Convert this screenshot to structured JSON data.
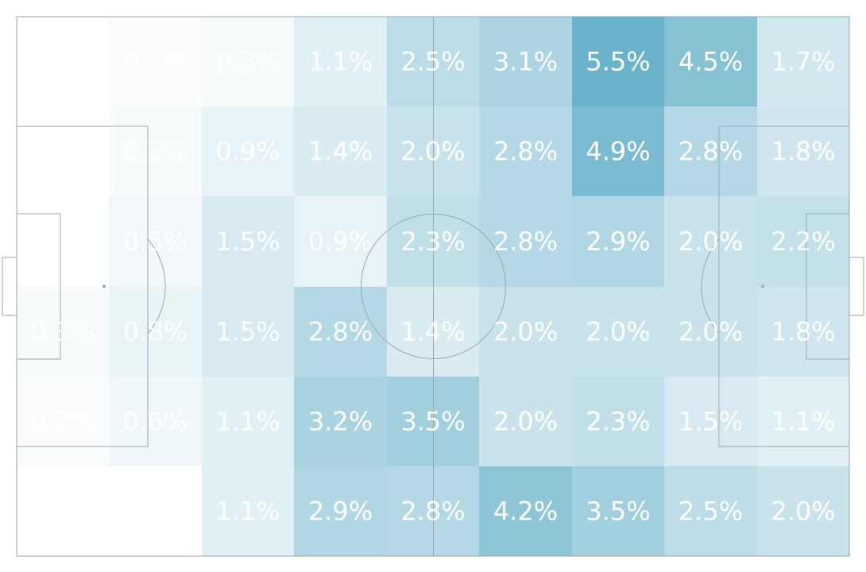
{
  "chart_data": {
    "type": "heatmap",
    "title": "",
    "xlabel": "",
    "ylabel": "",
    "grid": false,
    "legend": "none",
    "colors": {
      "low": "#ffffff",
      "high": "#6bb3cb",
      "lines": "#9aa7ad",
      "text": "#ffffff"
    },
    "rows": [
      {
        "cells": [
          {
            "value": 0.0,
            "label": ""
          },
          {
            "value": 0.2,
            "label": "0.2%"
          },
          {
            "value": 0.3,
            "label": "0.3%"
          },
          {
            "value": 1.1,
            "label": "1.1%"
          },
          {
            "value": 2.5,
            "label": "2.5%"
          },
          {
            "value": 3.1,
            "label": "3.1%"
          },
          {
            "value": 5.5,
            "label": "5.5%"
          },
          {
            "value": 4.5,
            "label": "4.5%"
          },
          {
            "value": 1.7,
            "label": "1.7%"
          }
        ]
      },
      {
        "cells": [
          {
            "value": 0.0,
            "label": ""
          },
          {
            "value": 0.3,
            "label": "0.3%"
          },
          {
            "value": 0.9,
            "label": "0.9%"
          },
          {
            "value": 1.4,
            "label": "1.4%"
          },
          {
            "value": 2.0,
            "label": "2.0%"
          },
          {
            "value": 2.8,
            "label": "2.8%"
          },
          {
            "value": 4.9,
            "label": "4.9%"
          },
          {
            "value": 2.8,
            "label": "2.8%"
          },
          {
            "value": 1.8,
            "label": "1.8%"
          }
        ]
      },
      {
        "cells": [
          {
            "value": 0.0,
            "label": ""
          },
          {
            "value": 0.5,
            "label": "0.5%"
          },
          {
            "value": 1.5,
            "label": "1.5%"
          },
          {
            "value": 0.9,
            "label": "0.9%"
          },
          {
            "value": 2.3,
            "label": "2.3%"
          },
          {
            "value": 2.8,
            "label": "2.8%"
          },
          {
            "value": 2.9,
            "label": "2.9%"
          },
          {
            "value": 2.0,
            "label": "2.0%"
          },
          {
            "value": 2.2,
            "label": "2.2%"
          }
        ]
      },
      {
        "cells": [
          {
            "value": 0.3,
            "label": "0.3%"
          },
          {
            "value": 0.8,
            "label": "0.8%"
          },
          {
            "value": 1.5,
            "label": "1.5%"
          },
          {
            "value": 2.8,
            "label": "2.8%"
          },
          {
            "value": 1.4,
            "label": "1.4%"
          },
          {
            "value": 2.0,
            "label": "2.0%"
          },
          {
            "value": 2.0,
            "label": "2.0%"
          },
          {
            "value": 2.0,
            "label": "2.0%"
          },
          {
            "value": 1.8,
            "label": "1.8%"
          }
        ]
      },
      {
        "cells": [
          {
            "value": 0.2,
            "label": "0.2%"
          },
          {
            "value": 0.6,
            "label": "0.6%"
          },
          {
            "value": 1.1,
            "label": "1.1%"
          },
          {
            "value": 3.2,
            "label": "3.2%"
          },
          {
            "value": 3.5,
            "label": "3.5%"
          },
          {
            "value": 2.0,
            "label": "2.0%"
          },
          {
            "value": 2.3,
            "label": "2.3%"
          },
          {
            "value": 1.5,
            "label": "1.5%"
          },
          {
            "value": 1.1,
            "label": "1.1%"
          }
        ]
      },
      {
        "cells": [
          {
            "value": 0.0,
            "label": ""
          },
          {
            "value": 0.0,
            "label": ""
          },
          {
            "value": 1.1,
            "label": "1.1%"
          },
          {
            "value": 2.9,
            "label": "2.9%"
          },
          {
            "value": 2.8,
            "label": "2.8%"
          },
          {
            "value": 4.2,
            "label": "4.2%"
          },
          {
            "value": 3.5,
            "label": "3.5%"
          },
          {
            "value": 2.5,
            "label": "2.5%"
          },
          {
            "value": 2.0,
            "label": "2.0%"
          }
        ]
      }
    ]
  }
}
